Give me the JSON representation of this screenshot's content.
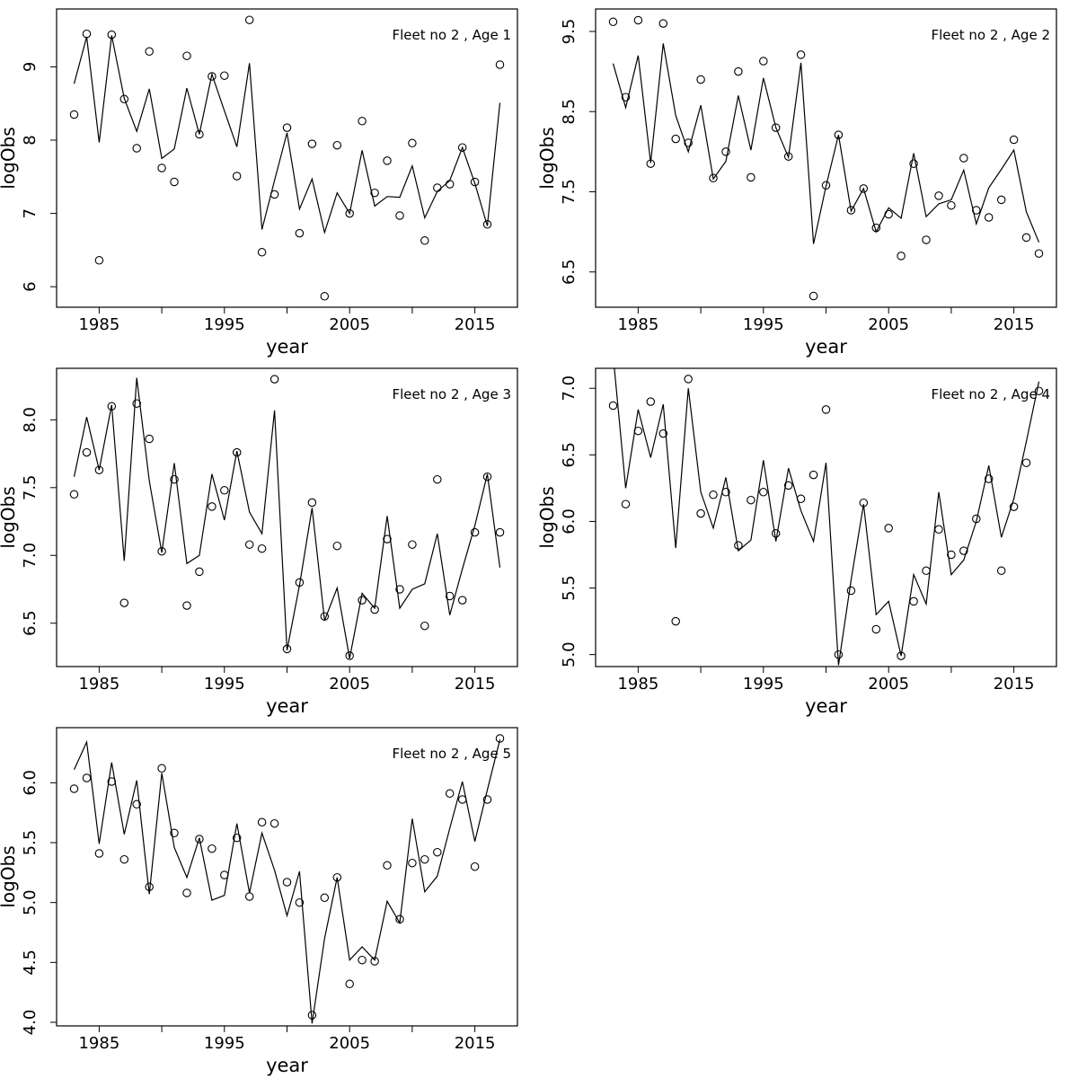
{
  "page": {
    "background": "#ffffff",
    "foreground": "#000000",
    "layout": "2x3 grid of base-R style fit plots, bottom-right cell empty"
  },
  "chart_data": [
    {
      "type": "line",
      "title": "Fleet no 2 , Age 1",
      "xlabel": "year",
      "ylabel": "logObs",
      "grid": false,
      "legend": "none",
      "point_style": "open-circle",
      "line_color": "#000000",
      "point_color": "#000000",
      "xlim": [
        1981.6,
        2018.4
      ],
      "ylim": [
        5.72,
        9.79
      ],
      "xticks": [
        1985,
        1990,
        1995,
        2000,
        2005,
        2010,
        2015
      ],
      "xtick_labels": [
        "1985",
        "",
        "1995",
        "",
        "2005",
        "",
        "2015"
      ],
      "yticks": [
        6,
        7,
        8,
        9
      ],
      "ytick_labels": [
        "6",
        "7",
        "8",
        "9"
      ],
      "x": [
        1983,
        1984,
        1985,
        1986,
        1987,
        1988,
        1989,
        1990,
        1991,
        1992,
        1993,
        1994,
        1995,
        1996,
        1997,
        1998,
        1999,
        2000,
        2001,
        2002,
        2003,
        2004,
        2005,
        2006,
        2007,
        2008,
        2009,
        2010,
        2011,
        2012,
        2013,
        2014,
        2015,
        2016,
        2017
      ],
      "series": [
        {
          "name": "observations",
          "render": "points",
          "values": [
            8.35,
            9.45,
            6.36,
            9.44,
            8.56,
            7.89,
            9.21,
            7.62,
            7.43,
            9.15,
            8.08,
            8.87,
            8.88,
            7.51,
            9.64,
            6.47,
            7.26,
            8.17,
            6.73,
            7.95,
            5.87,
            7.93,
            7.0,
            8.26,
            7.28,
            7.72,
            6.97,
            7.96,
            6.63,
            7.35,
            7.4,
            7.9,
            7.43,
            6.85,
            9.03
          ]
        },
        {
          "name": "fitted",
          "render": "line",
          "values": [
            8.77,
            9.41,
            7.97,
            9.43,
            8.57,
            8.12,
            8.7,
            7.75,
            7.88,
            8.71,
            8.08,
            8.9,
            8.4,
            7.91,
            9.05,
            6.78,
            7.45,
            8.1,
            7.06,
            7.47,
            6.74,
            7.28,
            7.0,
            7.86,
            7.1,
            7.23,
            7.22,
            7.65,
            6.94,
            7.3,
            7.45,
            7.9,
            7.41,
            6.83,
            8.51
          ]
        }
      ]
    },
    {
      "type": "line",
      "title": "Fleet no 2 , Age 2",
      "xlabel": "year",
      "ylabel": "logObs",
      "grid": false,
      "legend": "none",
      "point_style": "open-circle",
      "line_color": "#000000",
      "point_color": "#000000",
      "xlim": [
        1981.6,
        2018.4
      ],
      "ylim": [
        6.06,
        9.78
      ],
      "xticks": [
        1985,
        1990,
        1995,
        2000,
        2005,
        2010,
        2015
      ],
      "xtick_labels": [
        "1985",
        "",
        "1995",
        "",
        "2005",
        "",
        "2015"
      ],
      "yticks": [
        6.5,
        7.5,
        8.5,
        9.5
      ],
      "ytick_labels": [
        "6.5",
        "7.5",
        "8.5",
        "9.5"
      ],
      "x": [
        1983,
        1984,
        1985,
        1986,
        1987,
        1988,
        1989,
        1990,
        1991,
        1992,
        1993,
        1994,
        1995,
        1996,
        1997,
        1998,
        1999,
        2000,
        2001,
        2002,
        2003,
        2004,
        2005,
        2006,
        2007,
        2008,
        2009,
        2010,
        2011,
        2012,
        2013,
        2014,
        2015,
        2016,
        2017
      ],
      "series": [
        {
          "name": "observations",
          "render": "points",
          "values": [
            9.62,
            8.68,
            9.64,
            7.85,
            9.6,
            8.16,
            8.11,
            8.9,
            7.67,
            8.0,
            9.0,
            7.68,
            9.13,
            8.3,
            7.94,
            9.21,
            6.2,
            7.58,
            8.21,
            7.27,
            7.54,
            7.05,
            7.22,
            6.7,
            7.85,
            6.9,
            7.45,
            7.33,
            7.92,
            7.27,
            7.18,
            7.4,
            8.15,
            6.93,
            6.73
          ]
        },
        {
          "name": "fitted",
          "render": "line",
          "values": [
            9.1,
            8.55,
            9.2,
            7.86,
            9.35,
            8.45,
            8.0,
            8.58,
            7.66,
            7.88,
            8.7,
            8.02,
            8.92,
            8.3,
            7.93,
            9.11,
            6.85,
            7.57,
            8.21,
            7.26,
            7.54,
            7.0,
            7.3,
            7.17,
            7.98,
            7.19,
            7.35,
            7.4,
            7.77,
            7.1,
            7.55,
            7.78,
            8.02,
            7.25,
            6.87
          ]
        }
      ]
    },
    {
      "type": "line",
      "title": "Fleet no 2 , Age 3",
      "xlabel": "year",
      "ylabel": "logObs",
      "grid": false,
      "legend": "none",
      "point_style": "open-circle",
      "line_color": "#000000",
      "point_color": "#000000",
      "xlim": [
        1981.6,
        2018.4
      ],
      "ylim": [
        6.18,
        8.38
      ],
      "xticks": [
        1985,
        1990,
        1995,
        2000,
        2005,
        2010,
        2015
      ],
      "xtick_labels": [
        "1985",
        "",
        "1995",
        "",
        "2005",
        "",
        "2015"
      ],
      "yticks": [
        6.5,
        7.0,
        7.5,
        8.0
      ],
      "ytick_labels": [
        "6.5",
        "7.0",
        "7.5",
        "8.0"
      ],
      "x": [
        1983,
        1984,
        1985,
        1986,
        1987,
        1988,
        1989,
        1990,
        1991,
        1992,
        1993,
        1994,
        1995,
        1996,
        1997,
        1998,
        1999,
        2000,
        2001,
        2002,
        2003,
        2004,
        2005,
        2006,
        2007,
        2008,
        2009,
        2010,
        2011,
        2012,
        2013,
        2014,
        2015,
        2016,
        2017
      ],
      "series": [
        {
          "name": "observations",
          "render": "points",
          "values": [
            7.45,
            7.76,
            7.63,
            8.1,
            6.65,
            8.12,
            7.86,
            7.03,
            7.56,
            6.63,
            6.88,
            7.36,
            7.48,
            7.76,
            7.08,
            7.05,
            8.3,
            6.31,
            6.8,
            7.39,
            6.55,
            7.07,
            6.26,
            6.67,
            6.6,
            7.12,
            6.75,
            7.08,
            6.48,
            7.56,
            6.7,
            6.67,
            7.17,
            7.58,
            7.17
          ]
        },
        {
          "name": "fitted",
          "render": "line",
          "values": [
            7.58,
            8.02,
            7.63,
            8.11,
            6.96,
            8.31,
            7.55,
            7.02,
            7.68,
            6.94,
            7.0,
            7.6,
            7.26,
            7.77,
            7.32,
            7.16,
            8.07,
            6.3,
            6.78,
            7.35,
            6.52,
            6.76,
            6.24,
            6.72,
            6.61,
            7.29,
            6.61,
            6.75,
            6.79,
            7.16,
            6.56,
            6.9,
            7.22,
            7.6,
            6.91
          ]
        }
      ]
    },
    {
      "type": "line",
      "title": "Fleet no 2 , Age 4",
      "xlabel": "year",
      "ylabel": "logObs",
      "grid": false,
      "legend": "none",
      "point_style": "open-circle",
      "line_color": "#000000",
      "point_color": "#000000",
      "xlim": [
        1981.6,
        2018.4
      ],
      "ylim": [
        4.91,
        7.15
      ],
      "xticks": [
        1985,
        1990,
        1995,
        2000,
        2005,
        2010,
        2015
      ],
      "xtick_labels": [
        "1985",
        "",
        "1995",
        "",
        "2005",
        "",
        "2015"
      ],
      "yticks": [
        5.0,
        5.5,
        6.0,
        6.5,
        7.0
      ],
      "ytick_labels": [
        "5.0",
        "5.5",
        "6.0",
        "6.5",
        "7.0"
      ],
      "x": [
        1983,
        1984,
        1985,
        1986,
        1987,
        1988,
        1989,
        1990,
        1991,
        1992,
        1993,
        1994,
        1995,
        1996,
        1997,
        1998,
        1999,
        2000,
        2001,
        2002,
        2003,
        2004,
        2005,
        2006,
        2007,
        2008,
        2009,
        2010,
        2011,
        2012,
        2013,
        2014,
        2015,
        2016,
        2017
      ],
      "series": [
        {
          "name": "observations",
          "render": "points",
          "values": [
            6.87,
            6.13,
            6.68,
            6.9,
            6.66,
            5.25,
            7.07,
            6.06,
            6.2,
            6.22,
            5.82,
            6.16,
            6.22,
            5.91,
            6.27,
            6.17,
            6.35,
            6.84,
            5.0,
            5.48,
            6.14,
            5.19,
            5.95,
            4.99,
            5.4,
            5.63,
            5.94,
            5.75,
            5.78,
            6.02,
            6.32,
            5.63,
            6.11,
            6.44,
            6.98
          ]
        },
        {
          "name": "fitted",
          "render": "line",
          "values": [
            7.25,
            6.25,
            6.84,
            6.48,
            6.88,
            5.8,
            7.0,
            6.22,
            5.95,
            6.33,
            5.78,
            5.86,
            6.46,
            5.85,
            6.4,
            6.08,
            5.85,
            6.44,
            4.92,
            5.56,
            6.13,
            5.3,
            5.4,
            4.99,
            5.6,
            5.38,
            6.22,
            5.6,
            5.71,
            6.0,
            6.42,
            5.88,
            6.17,
            6.6,
            7.05
          ]
        }
      ]
    },
    {
      "type": "line",
      "title": "Fleet no 2 , Age 5",
      "xlabel": "year",
      "ylabel": "logObs",
      "grid": false,
      "legend": "none",
      "point_style": "open-circle",
      "line_color": "#000000",
      "point_color": "#000000",
      "xlim": [
        1981.6,
        2018.4
      ],
      "ylim": [
        3.97,
        6.46
      ],
      "xticks": [
        1985,
        1990,
        1995,
        2000,
        2005,
        2010,
        2015
      ],
      "xtick_labels": [
        "1985",
        "",
        "1995",
        "",
        "2005",
        "",
        "2015"
      ],
      "yticks": [
        4.0,
        4.5,
        5.0,
        5.5,
        6.0
      ],
      "ytick_labels": [
        "4.0",
        "4.5",
        "5.0",
        "5.5",
        "6.0"
      ],
      "x": [
        1983,
        1984,
        1985,
        1986,
        1987,
        1988,
        1989,
        1990,
        1991,
        1992,
        1993,
        1994,
        1995,
        1996,
        1997,
        1998,
        1999,
        2000,
        2001,
        2002,
        2003,
        2004,
        2005,
        2006,
        2007,
        2008,
        2009,
        2010,
        2011,
        2012,
        2013,
        2014,
        2015,
        2016,
        2017
      ],
      "series": [
        {
          "name": "observations",
          "render": "points",
          "values": [
            5.95,
            6.04,
            5.41,
            6.01,
            5.36,
            5.82,
            5.13,
            6.12,
            5.58,
            5.08,
            5.53,
            5.45,
            5.23,
            5.54,
            5.05,
            5.67,
            5.66,
            5.17,
            5.0,
            4.06,
            5.04,
            5.21,
            4.32,
            4.52,
            4.51,
            5.31,
            4.86,
            5.33,
            5.36,
            5.42,
            5.91,
            5.86,
            5.3,
            5.86,
            6.37
          ]
        },
        {
          "name": "fitted",
          "render": "line",
          "values": [
            6.11,
            6.34,
            5.49,
            6.17,
            5.57,
            6.02,
            5.07,
            6.08,
            5.46,
            5.21,
            5.54,
            5.02,
            5.06,
            5.66,
            5.08,
            5.58,
            5.27,
            4.89,
            5.26,
            3.99,
            4.7,
            5.21,
            4.52,
            4.63,
            4.52,
            5.01,
            4.83,
            5.7,
            5.09,
            5.22,
            5.62,
            6.01,
            5.51,
            5.94,
            6.36
          ]
        }
      ]
    }
  ]
}
